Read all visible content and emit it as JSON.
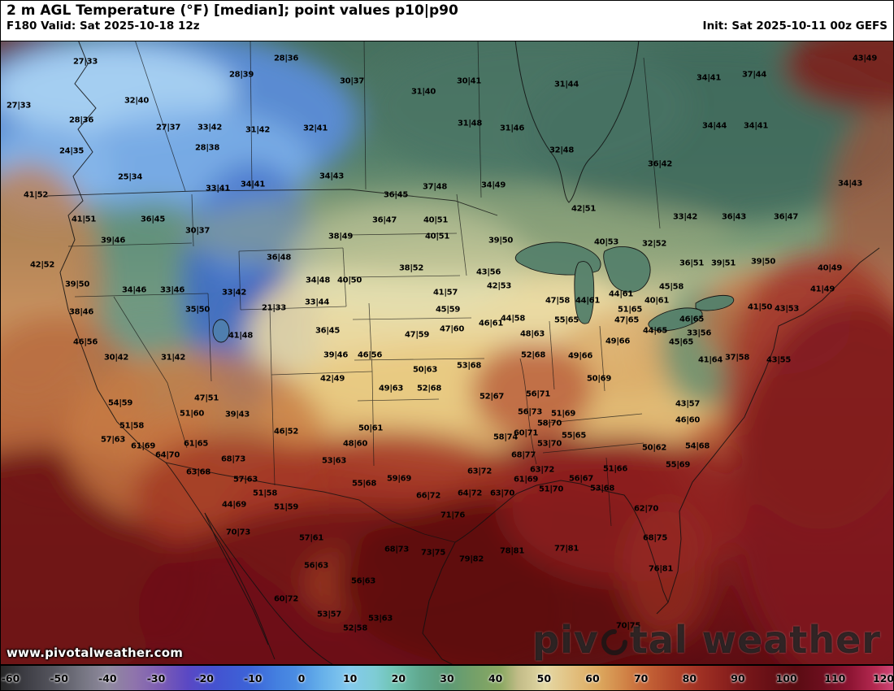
{
  "header": {
    "title": "2 m AGL Temperature (°F) [median]; point values p10|p90",
    "valid_label": "F180 Valid: Sat 2025-10-18 12z",
    "init_label": "Init: Sat 2025-10-11 00z GEFS"
  },
  "watermark": "www.pivotalweather.com",
  "logo": {
    "part1": "piv",
    "part2": "tal weather"
  },
  "colorbar": {
    "ticks": [
      "-60",
      "-50",
      "-40",
      "-30",
      "-20",
      "-10",
      "0",
      "10",
      "20",
      "30",
      "40",
      "50",
      "60",
      "70",
      "80",
      "90",
      "100",
      "110",
      "120"
    ],
    "stops": [
      [
        0,
        "#262626"
      ],
      [
        3,
        "#3f3f46"
      ],
      [
        6,
        "#55555e"
      ],
      [
        9,
        "#73737f"
      ],
      [
        12,
        "#8f8a9e"
      ],
      [
        15,
        "#8f74ac"
      ],
      [
        18,
        "#7c5cb4"
      ],
      [
        21,
        "#5a48c4"
      ],
      [
        24,
        "#4452d0"
      ],
      [
        28,
        "#3c64d8"
      ],
      [
        31,
        "#4480e0"
      ],
      [
        33,
        "#4a8ce2"
      ],
      [
        36,
        "#66b0ea"
      ],
      [
        39,
        "#84caee"
      ],
      [
        42,
        "#7eccd4"
      ],
      [
        44,
        "#70c4b4"
      ],
      [
        47,
        "#60a88e"
      ],
      [
        50,
        "#5c9a76"
      ],
      [
        53,
        "#74a069"
      ],
      [
        56,
        "#8aa862"
      ],
      [
        58,
        "#c2bc88"
      ],
      [
        61,
        "#e4d8a4"
      ],
      [
        64,
        "#e2c080"
      ],
      [
        67,
        "#dca85e"
      ],
      [
        70,
        "#d08246"
      ],
      [
        72,
        "#c66638"
      ],
      [
        75,
        "#b44a2c"
      ],
      [
        78,
        "#a23224"
      ],
      [
        81,
        "#8c221e"
      ],
      [
        83,
        "#7a181a"
      ],
      [
        86,
        "#681016"
      ],
      [
        89,
        "#5a0c12"
      ],
      [
        92,
        "#6c0e1e"
      ],
      [
        95,
        "#8c1432"
      ],
      [
        98,
        "#b62a52"
      ],
      [
        100,
        "#d04878"
      ]
    ]
  },
  "map_points": [
    [
      105,
      76,
      "27|33"
    ],
    [
      297,
      92,
      "28|39"
    ],
    [
      352,
      72,
      "28|36"
    ],
    [
      433,
      100,
      "30|37"
    ],
    [
      521,
      113,
      "31|40"
    ],
    [
      577,
      100,
      "30|41"
    ],
    [
      697,
      104,
      "31|44"
    ],
    [
      872,
      96,
      "34|41"
    ],
    [
      928,
      92,
      "37|44"
    ],
    [
      1064,
      72,
      "43|49"
    ],
    [
      23,
      130,
      "27|33"
    ],
    [
      168,
      124,
      "32|40"
    ],
    [
      100,
      148,
      "28|36"
    ],
    [
      207,
      157,
      "27|37"
    ],
    [
      258,
      157,
      "33|42"
    ],
    [
      317,
      160,
      "31|42"
    ],
    [
      388,
      158,
      "32|41"
    ],
    [
      578,
      152,
      "31|48"
    ],
    [
      630,
      158,
      "31|46"
    ],
    [
      879,
      155,
      "34|44"
    ],
    [
      930,
      155,
      "34|41"
    ],
    [
      691,
      185,
      "32|48"
    ],
    [
      88,
      186,
      "24|35"
    ],
    [
      255,
      182,
      "28|38"
    ],
    [
      160,
      218,
      "25|34"
    ],
    [
      268,
      232,
      "33|41"
    ],
    [
      311,
      227,
      "34|41"
    ],
    [
      408,
      217,
      "34|43"
    ],
    [
      607,
      228,
      "34|49"
    ],
    [
      487,
      240,
      "36|45"
    ],
    [
      535,
      230,
      "37|48"
    ],
    [
      718,
      257,
      "42|51"
    ],
    [
      812,
      202,
      "36|42"
    ],
    [
      1046,
      226,
      "34|43"
    ],
    [
      44,
      240,
      "41|52"
    ],
    [
      103,
      270,
      "41|51"
    ],
    [
      188,
      270,
      "36|45"
    ],
    [
      243,
      284,
      "30|37"
    ],
    [
      139,
      296,
      "39|46"
    ],
    [
      52,
      326,
      "42|52"
    ],
    [
      95,
      350,
      "39|50"
    ],
    [
      165,
      357,
      "34|46"
    ],
    [
      212,
      357,
      "33|46"
    ],
    [
      288,
      360,
      "33|42"
    ],
    [
      243,
      381,
      "35|50"
    ],
    [
      100,
      384,
      "38|46"
    ],
    [
      343,
      317,
      "36|48"
    ],
    [
      391,
      345,
      "34|48"
    ],
    [
      430,
      345,
      "40|50"
    ],
    [
      337,
      379,
      "21|33"
    ],
    [
      390,
      372,
      "33|44"
    ],
    [
      403,
      407,
      "36|45"
    ],
    [
      296,
      413,
      "41|48"
    ],
    [
      419,
      291,
      "38|49"
    ],
    [
      473,
      271,
      "36|47"
    ],
    [
      536,
      271,
      "40|51"
    ],
    [
      538,
      291,
      "40|51"
    ],
    [
      506,
      330,
      "38|52"
    ],
    [
      616,
      296,
      "39|50"
    ],
    [
      548,
      360,
      "41|57"
    ],
    [
      601,
      335,
      "43|56"
    ],
    [
      614,
      352,
      "42|53"
    ],
    [
      551,
      381,
      "45|59"
    ],
    [
      604,
      398,
      "46|61"
    ],
    [
      631,
      392,
      "44|58"
    ],
    [
      655,
      411,
      "48|63"
    ],
    [
      513,
      412,
      "47|59"
    ],
    [
      556,
      405,
      "47|60"
    ],
    [
      746,
      298,
      "40|53"
    ],
    [
      805,
      300,
      "32|52"
    ],
    [
      843,
      267,
      "33|42"
    ],
    [
      903,
      267,
      "36|43"
    ],
    [
      967,
      267,
      "36|47"
    ],
    [
      851,
      324,
      "36|51"
    ],
    [
      890,
      324,
      "39|51"
    ],
    [
      939,
      322,
      "39|50"
    ],
    [
      1021,
      330,
      "40|49"
    ],
    [
      1012,
      356,
      "41|49"
    ],
    [
      968,
      380,
      "43|53"
    ],
    [
      935,
      378,
      "41|50"
    ],
    [
      686,
      370,
      "47|58"
    ],
    [
      723,
      370,
      "44|61"
    ],
    [
      764,
      362,
      "44|61"
    ],
    [
      775,
      381,
      "51|65"
    ],
    [
      697,
      394,
      "55|65"
    ],
    [
      826,
      353,
      "45|58"
    ],
    [
      808,
      370,
      "40|61"
    ],
    [
      851,
      393,
      "46|65"
    ],
    [
      771,
      394,
      "47|65"
    ],
    [
      806,
      407,
      "44|65"
    ],
    [
      860,
      410,
      "33|56"
    ],
    [
      907,
      440,
      "37|58"
    ],
    [
      958,
      443,
      "43|55"
    ],
    [
      874,
      443,
      "41|64"
    ],
    [
      455,
      437,
      "46|56"
    ],
    [
      413,
      437,
      "39|46"
    ],
    [
      409,
      466,
      "42|49"
    ],
    [
      481,
      478,
      "49|63"
    ],
    [
      523,
      455,
      "50|63"
    ],
    [
      528,
      478,
      "52|68"
    ],
    [
      577,
      450,
      "53|68"
    ],
    [
      656,
      437,
      "52|68"
    ],
    [
      605,
      488,
      "52|67"
    ],
    [
      662,
      485,
      "56|71"
    ],
    [
      714,
      438,
      "49|66"
    ],
    [
      737,
      466,
      "50|69"
    ],
    [
      760,
      420,
      "49|66"
    ],
    [
      838,
      421,
      "45|65"
    ],
    [
      693,
      509,
      "51|69"
    ],
    [
      652,
      507,
      "56|73"
    ],
    [
      676,
      521,
      "58|70"
    ],
    [
      143,
      440,
      "30|42"
    ],
    [
      213,
      440,
      "31|42"
    ],
    [
      105,
      421,
      "46|56"
    ],
    [
      254,
      490,
      "47|51"
    ],
    [
      236,
      509,
      "51|60"
    ],
    [
      148,
      496,
      "54|59"
    ],
    [
      162,
      524,
      "51|58"
    ],
    [
      139,
      541,
      "57|63"
    ],
    [
      176,
      549,
      "61|69"
    ],
    [
      206,
      560,
      "64|70"
    ],
    [
      241,
      546,
      "61|65"
    ],
    [
      244,
      581,
      "63|68"
    ],
    [
      287,
      565,
      "68|73"
    ],
    [
      292,
      510,
      "39|43"
    ],
    [
      352,
      531,
      "46|52"
    ],
    [
      302,
      590,
      "57|63"
    ],
    [
      326,
      607,
      "51|58"
    ],
    [
      288,
      621,
      "44|69"
    ],
    [
      352,
      624,
      "51|59"
    ],
    [
      437,
      546,
      "48|60"
    ],
    [
      456,
      527,
      "50|61"
    ],
    [
      411,
      567,
      "53|63"
    ],
    [
      448,
      595,
      "55|68"
    ],
    [
      491,
      589,
      "59|69"
    ],
    [
      527,
      610,
      "66|72"
    ],
    [
      557,
      634,
      "71|76"
    ],
    [
      578,
      607,
      "64|72"
    ],
    [
      618,
      607,
      "63|70"
    ],
    [
      590,
      580,
      "63|72"
    ],
    [
      622,
      538,
      "58|74"
    ],
    [
      647,
      533,
      "60|71"
    ],
    [
      644,
      560,
      "68|77"
    ],
    [
      667,
      578,
      "63|72"
    ],
    [
      647,
      590,
      "61|69"
    ],
    [
      678,
      602,
      "51|70"
    ],
    [
      676,
      546,
      "53|70"
    ],
    [
      706,
      536,
      "55|65"
    ],
    [
      757,
      577,
      "51|66"
    ],
    [
      741,
      601,
      "53|68"
    ],
    [
      805,
      551,
      "50|62"
    ],
    [
      834,
      572,
      "55|69"
    ],
    [
      715,
      589,
      "56|67"
    ],
    [
      846,
      497,
      "43|57"
    ],
    [
      846,
      517,
      "46|60"
    ],
    [
      858,
      549,
      "54|68"
    ],
    [
      795,
      626,
      "62|70"
    ],
    [
      806,
      662,
      "68|75"
    ],
    [
      813,
      700,
      "76|81"
    ],
    [
      773,
      770,
      "70|75"
    ],
    [
      630,
      678,
      "78|81"
    ],
    [
      697,
      675,
      "77|81"
    ],
    [
      580,
      688,
      "79|82"
    ],
    [
      533,
      680,
      "73|75"
    ],
    [
      488,
      676,
      "68|73"
    ],
    [
      447,
      715,
      "56|63"
    ],
    [
      383,
      662,
      "57|61"
    ],
    [
      389,
      696,
      "56|63"
    ],
    [
      352,
      737,
      "60|72"
    ],
    [
      405,
      756,
      "53|57"
    ],
    [
      437,
      773,
      "52|58"
    ],
    [
      468,
      761,
      "53|63"
    ],
    [
      293,
      655,
      "70|73"
    ]
  ]
}
